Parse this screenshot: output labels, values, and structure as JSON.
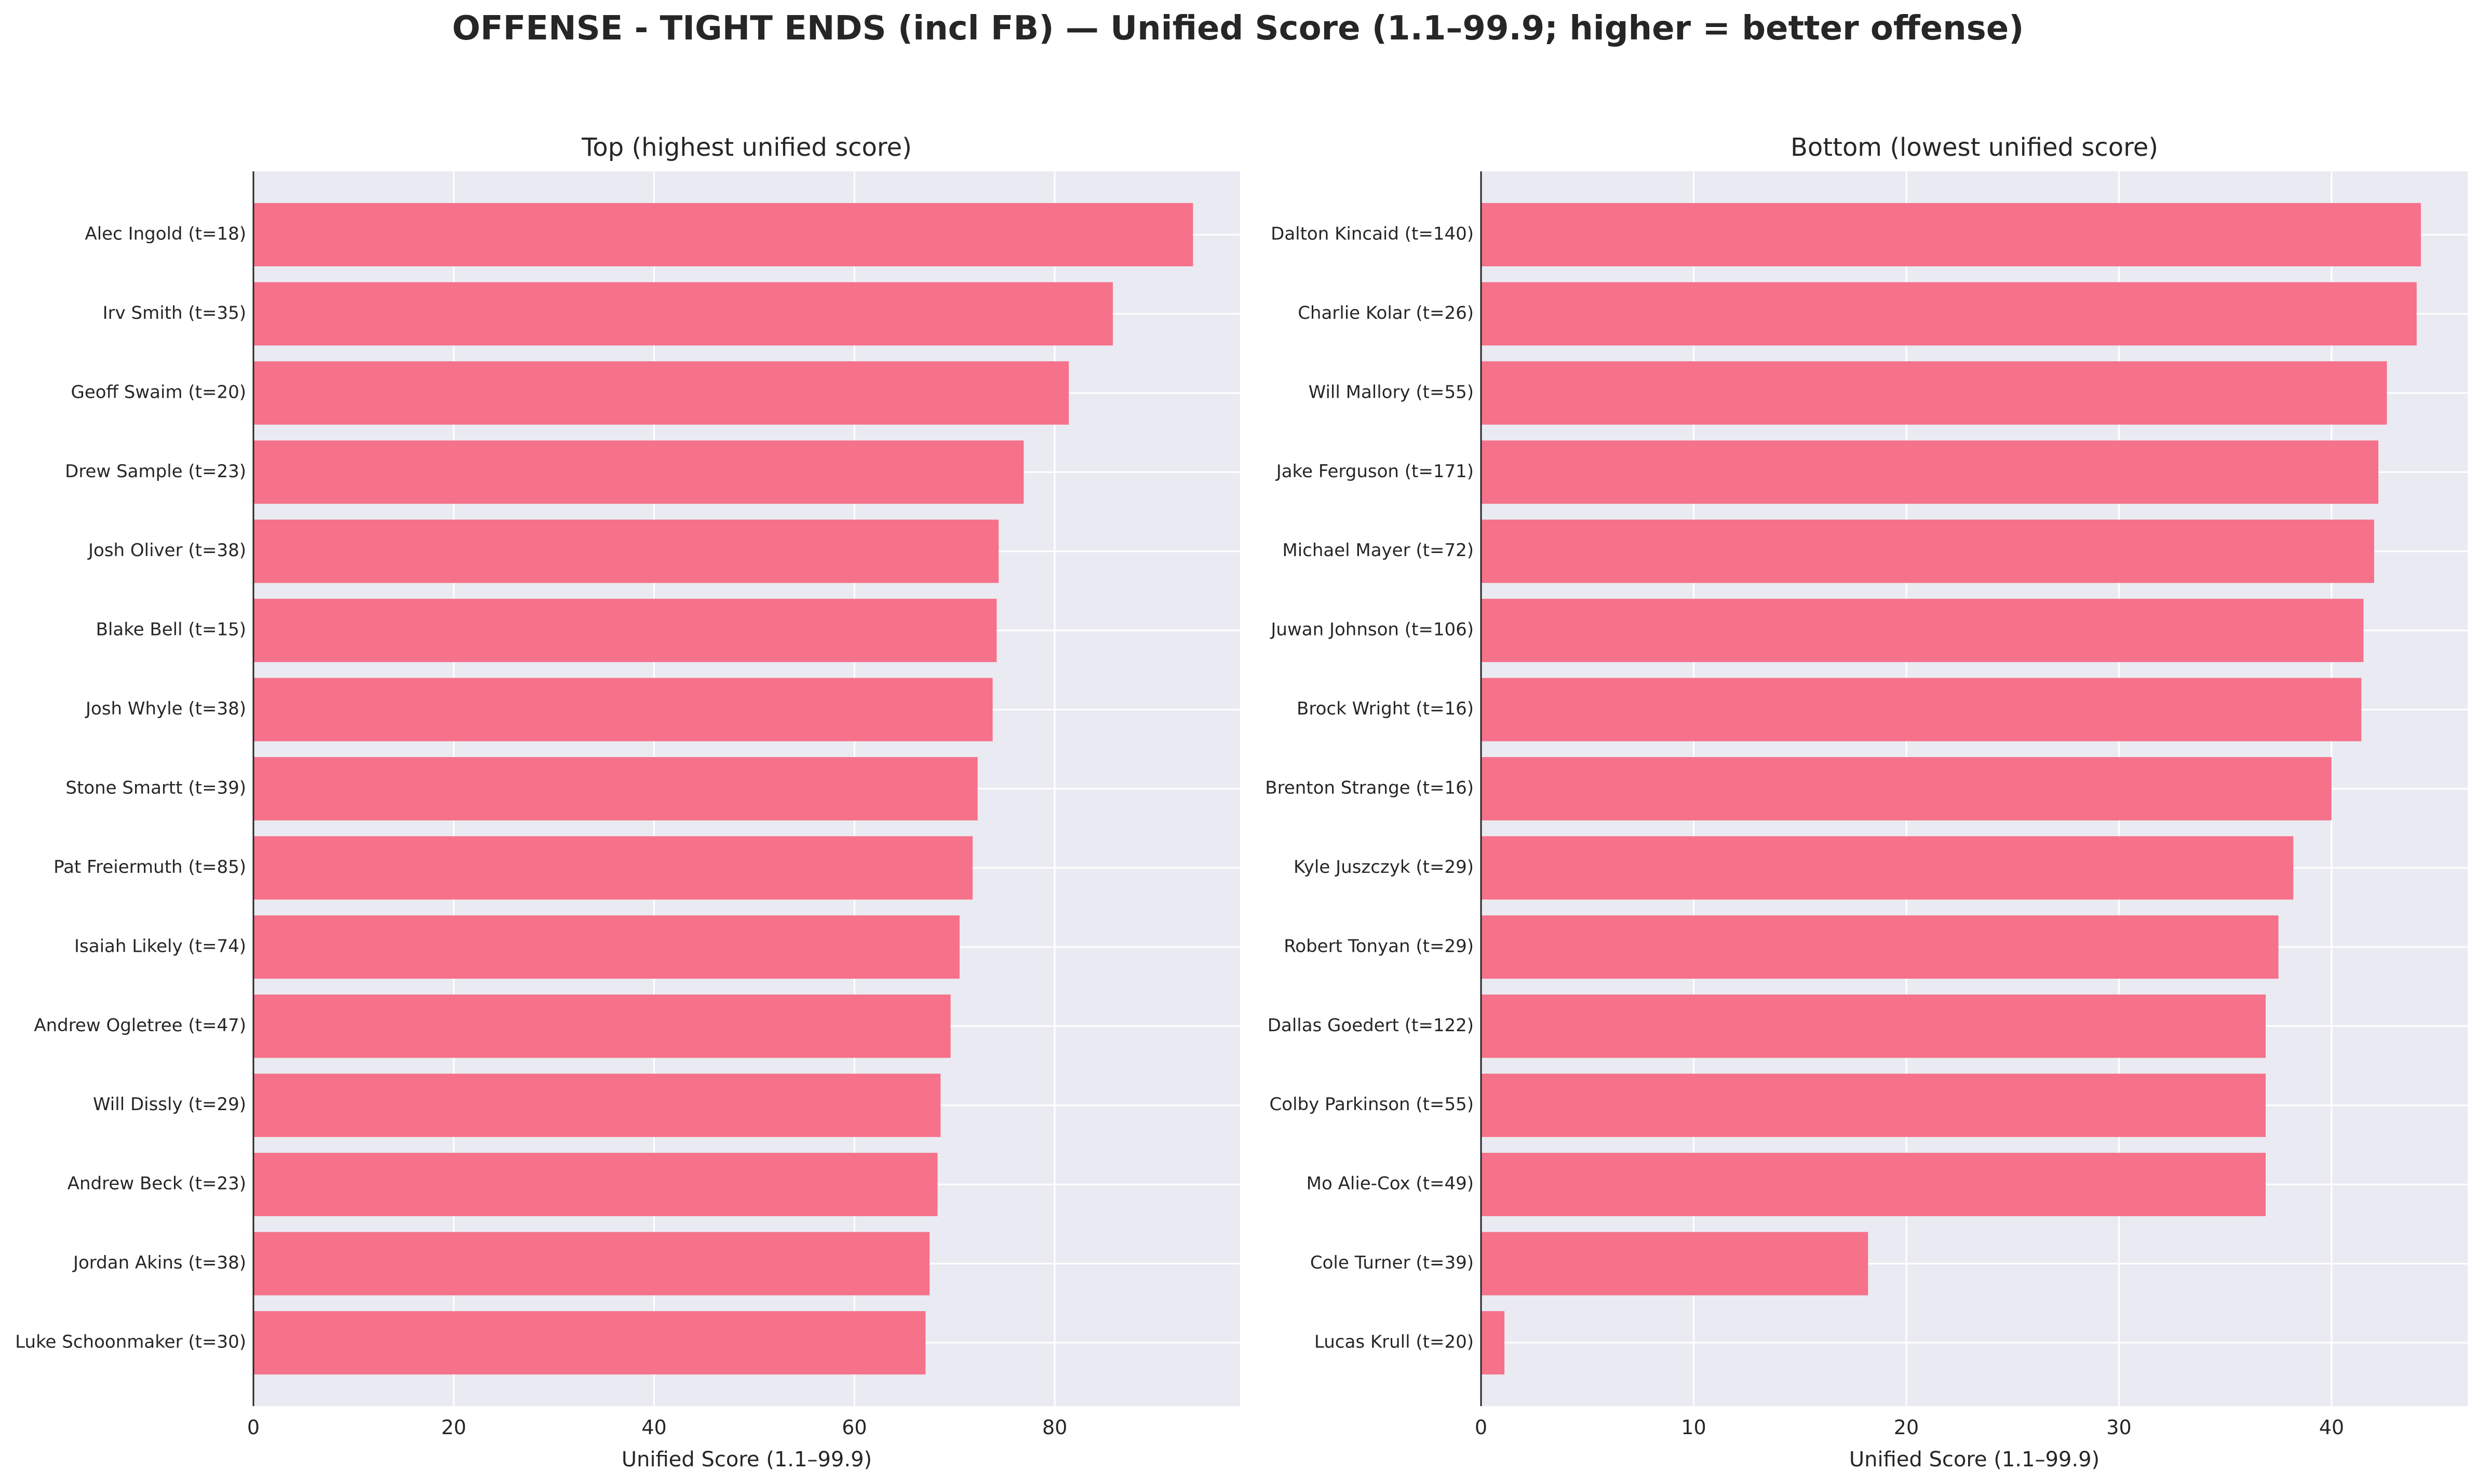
{
  "suptitle": "OFFENSE - TIGHT ENDS (incl FB) — Unified Score (1.1–99.9; higher = better offense)",
  "colors": {
    "bar": "#f5728a",
    "plot_bg": "#eaeaf2",
    "grid": "#ffffff",
    "axis": "#262626",
    "text": "#262626"
  },
  "chart_data": [
    {
      "type": "bar",
      "orientation": "horizontal",
      "title": "Top (highest unified score)",
      "xlabel": "Unified Score (1.1–99.9)",
      "xlim": [
        0,
        98.5
      ],
      "xticks": [
        0,
        20,
        40,
        60,
        80
      ],
      "grid": true,
      "categories": [
        "Alec Ingold  (t=18)",
        "Irv Smith  (t=35)",
        "Geoff Swaim  (t=20)",
        "Drew Sample  (t=23)",
        "Josh Oliver  (t=38)",
        "Blake Bell  (t=15)",
        "Josh Whyle  (t=38)",
        "Stone Smartt  (t=39)",
        "Pat Freiermuth  (t=85)",
        "Isaiah Likely  (t=74)",
        "Andrew Ogletree  (t=47)",
        "Will Dissly  (t=29)",
        "Andrew Beck  (t=23)",
        "Jordan Akins  (t=38)",
        "Luke Schoonmaker  (t=30)"
      ],
      "values": [
        93.8,
        85.8,
        81.4,
        76.9,
        74.4,
        74.2,
        73.8,
        72.3,
        71.8,
        70.5,
        69.6,
        68.6,
        68.3,
        67.5,
        67.1
      ]
    },
    {
      "type": "bar",
      "orientation": "horizontal",
      "title": "Bottom (lowest unified score)",
      "xlabel": "Unified Score (1.1–99.9)",
      "xlim": [
        0,
        46.4
      ],
      "xticks": [
        0,
        10,
        20,
        30,
        40
      ],
      "grid": true,
      "categories": [
        "Dalton Kincaid  (t=140)",
        "Charlie Kolar  (t=26)",
        "Will Mallory  (t=55)",
        "Jake Ferguson  (t=171)",
        "Michael Mayer  (t=72)",
        "Juwan Johnson  (t=106)",
        "Brock Wright  (t=16)",
        "Brenton Strange  (t=16)",
        "Kyle Juszczyk  (t=29)",
        "Robert Tonyan  (t=29)",
        "Dallas Goedert  (t=122)",
        "Colby Parkinson  (t=55)",
        "Mo Alie-Cox  (t=49)",
        "Cole Turner  (t=39)",
        "Lucas Krull  (t=20)"
      ],
      "values": [
        44.2,
        44.0,
        42.6,
        42.2,
        42.0,
        41.5,
        41.4,
        40.0,
        38.2,
        37.5,
        36.9,
        36.9,
        36.9,
        18.2,
        1.1
      ]
    }
  ]
}
